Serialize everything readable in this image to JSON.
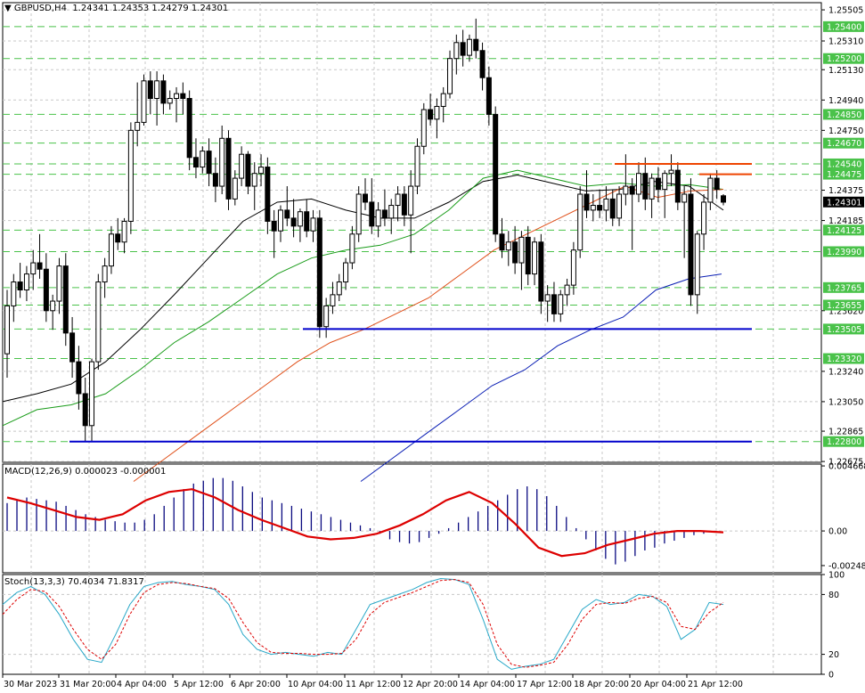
{
  "main": {
    "symbol": "GBPUSD,H4",
    "ohlc": "1.24341 1.24353 1.24279 1.24301",
    "current_price": "1.24301"
  },
  "macd": {
    "label": "MACD(12,26,9) 0.000023 -0.000001"
  },
  "stoch": {
    "label": "Stoch(13,3,3) 70.4034 71.8317"
  },
  "colors": {
    "candle": "#000000",
    "ma_black": "#000000",
    "ma_green": "#1a9c1a",
    "ma_orange": "#e0501a",
    "ma_blue": "#0a1eb4",
    "support_line": "#0000cc",
    "resistance_line": "#ee4400",
    "level_grid": "#4ac24a",
    "macd_signal": "#dd0000",
    "macd_hist": "#0a0a80",
    "stoch_main": "#28a8c8",
    "stoch_signal": "#dd0000"
  },
  "chart_data": [
    {
      "type": "candlestick",
      "title": "GBPUSD,H4",
      "ylim": [
        1.2267,
        1.2555
      ],
      "price_ticks": [
        "1.25505",
        "1.25310",
        "1.25130",
        "1.24940",
        "1.24750",
        "1.24375",
        "1.24185",
        "1.23620",
        "1.23240",
        "1.23050",
        "1.22865",
        "1.22675"
      ],
      "price_tick_values": [
        1.25505,
        1.2531,
        1.2513,
        1.2494,
        1.2475,
        1.24375,
        1.24185,
        1.2362,
        1.2324,
        1.2305,
        1.22865,
        1.22675
      ],
      "level_labels": [
        "1.25400",
        "1.25200",
        "1.24850",
        "1.24670",
        "1.24540",
        "1.24475",
        "1.24125",
        "1.23990",
        "1.23765",
        "1.23655",
        "1.23505",
        "1.23320",
        "1.22800"
      ],
      "level_values": [
        1.254,
        1.252,
        1.2485,
        1.2467,
        1.2454,
        1.24475,
        1.24125,
        1.2399,
        1.23765,
        1.23655,
        1.23505,
        1.2332,
        1.228
      ],
      "x_labels": [
        "30 Mar 2023",
        "31 Mar 20:00",
        "4 Apr 04:00",
        "5 Apr 12:00",
        "6 Apr 20:00",
        "10 Apr 04:00",
        "11 Apr 12:00",
        "12 Apr 20:00",
        "14 Apr 04:00",
        "17 Apr 12:00",
        "18 Apr 20:00",
        "20 Apr 04:00",
        "21 Apr 12:00"
      ],
      "candles": [
        [
          1.2335,
          1.2375,
          1.232,
          1.2365
        ],
        [
          1.2365,
          1.2385,
          1.2355,
          1.238
        ],
        [
          1.238,
          1.2392,
          1.237,
          1.2375
        ],
        [
          1.2375,
          1.239,
          1.2368,
          1.2385
        ],
        [
          1.2385,
          1.24,
          1.2375,
          1.2392
        ],
        [
          1.2392,
          1.241,
          1.2382,
          1.2388
        ],
        [
          1.2388,
          1.2398,
          1.2355,
          1.2362
        ],
        [
          1.2362,
          1.2372,
          1.235,
          1.2368
        ],
        [
          1.2368,
          1.2395,
          1.236,
          1.239
        ],
        [
          1.239,
          1.2398,
          1.234,
          1.2348
        ],
        [
          1.2348,
          1.2358,
          1.232,
          1.233
        ],
        [
          1.233,
          1.234,
          1.23,
          1.231
        ],
        [
          1.231,
          1.232,
          1.228,
          1.229
        ],
        [
          1.229,
          1.2332,
          1.228,
          1.233
        ],
        [
          1.233,
          1.2385,
          1.2325,
          1.238
        ],
        [
          1.238,
          1.2395,
          1.237,
          1.239
        ],
        [
          1.239,
          1.2415,
          1.2385,
          1.241
        ],
        [
          1.241,
          1.242,
          1.24,
          1.2405
        ],
        [
          1.2405,
          1.242,
          1.2398,
          1.2418
        ],
        [
          1.2418,
          1.248,
          1.241,
          1.2475
        ],
        [
          1.2475,
          1.2505,
          1.2465,
          1.248
        ],
        [
          1.248,
          1.251,
          1.2478,
          1.2506
        ],
        [
          1.2506,
          1.2512,
          1.2485,
          1.2495
        ],
        [
          1.2495,
          1.2512,
          1.2478,
          1.2506
        ],
        [
          1.2506,
          1.251,
          1.2485,
          1.2492
        ],
        [
          1.2492,
          1.25,
          1.2488,
          1.2495
        ],
        [
          1.2495,
          1.2502,
          1.248,
          1.2498
        ],
        [
          1.2498,
          1.2505,
          1.2485,
          1.2495
        ],
        [
          1.2495,
          1.25,
          1.245,
          1.2458
        ],
        [
          1.2458,
          1.247,
          1.2445,
          1.2452
        ],
        [
          1.2452,
          1.2465,
          1.2448,
          1.2462
        ],
        [
          1.2462,
          1.247,
          1.244,
          1.2448
        ],
        [
          1.2448,
          1.2458,
          1.243,
          1.244
        ],
        [
          1.244,
          1.2478,
          1.2435,
          1.247
        ],
        [
          1.247,
          1.2475,
          1.2425,
          1.2432
        ],
        [
          1.2432,
          1.245,
          1.2428,
          1.2445
        ],
        [
          1.2445,
          1.2465,
          1.244,
          1.246
        ],
        [
          1.246,
          1.2462,
          1.2435,
          1.244
        ],
        [
          1.244,
          1.2455,
          1.2425,
          1.2448
        ],
        [
          1.2448,
          1.246,
          1.244,
          1.2452
        ],
        [
          1.2452,
          1.2458,
          1.241,
          1.2418
        ],
        [
          1.2418,
          1.2425,
          1.2395,
          1.2412
        ],
        [
          1.2412,
          1.2428,
          1.2405,
          1.2425
        ],
        [
          1.2425,
          1.244,
          1.2415,
          1.242
        ],
        [
          1.242,
          1.2432,
          1.2408,
          1.2415
        ],
        [
          1.2415,
          1.2426,
          1.2405,
          1.2424
        ],
        [
          1.2424,
          1.2432,
          1.2408,
          1.2412
        ],
        [
          1.2412,
          1.2425,
          1.2405,
          1.242
        ],
        [
          1.242,
          1.2425,
          1.2345,
          1.2352
        ],
        [
          1.2352,
          1.237,
          1.2345,
          1.2365
        ],
        [
          1.2365,
          1.238,
          1.236,
          1.2372
        ],
        [
          1.2372,
          1.2385,
          1.2368,
          1.238
        ],
        [
          1.238,
          1.2395,
          1.2375,
          1.2392
        ],
        [
          1.2392,
          1.2415,
          1.2388,
          1.241
        ],
        [
          1.241,
          1.244,
          1.2405,
          1.2435
        ],
        [
          1.2435,
          1.2445,
          1.2425,
          1.243
        ],
        [
          1.243,
          1.2445,
          1.241,
          1.2415
        ],
        [
          1.2415,
          1.243,
          1.2408,
          1.2425
        ],
        [
          1.2425,
          1.2438,
          1.2415,
          1.242
        ],
        [
          1.242,
          1.2432,
          1.241,
          1.2428
        ],
        [
          1.2428,
          1.244,
          1.2418,
          1.2435
        ],
        [
          1.2435,
          1.244,
          1.2415,
          1.2422
        ],
        [
          1.2422,
          1.245,
          1.2398,
          1.244
        ],
        [
          1.244,
          1.247,
          1.2435,
          1.2465
        ],
        [
          1.2465,
          1.2492,
          1.246,
          1.2488
        ],
        [
          1.2488,
          1.2498,
          1.2478,
          1.2482
        ],
        [
          1.2482,
          1.2495,
          1.247,
          1.249
        ],
        [
          1.249,
          1.2502,
          1.248,
          1.2498
        ],
        [
          1.2498,
          1.2525,
          1.2495,
          1.252
        ],
        [
          1.252,
          1.2535,
          1.251,
          1.253
        ],
        [
          1.253,
          1.2538,
          1.2515,
          1.2522
        ],
        [
          1.2522,
          1.2535,
          1.2518,
          1.2532
        ],
        [
          1.2532,
          1.2545,
          1.252,
          1.2525
        ],
        [
          1.2525,
          1.253,
          1.25,
          1.2508
        ],
        [
          1.2508,
          1.2515,
          1.2478,
          1.2485
        ],
        [
          1.2485,
          1.249,
          1.2405,
          1.241
        ],
        [
          1.241,
          1.242,
          1.2395,
          1.24
        ],
        [
          1.24,
          1.2412,
          1.239,
          1.2405
        ],
        [
          1.2405,
          1.2415,
          1.2385,
          1.2392
        ],
        [
          1.2392,
          1.2412,
          1.2375,
          1.2408
        ],
        [
          1.2408,
          1.2415,
          1.2378,
          1.2385
        ],
        [
          1.2385,
          1.2408,
          1.2378,
          1.2405
        ],
        [
          1.2405,
          1.241,
          1.236,
          1.2368
        ],
        [
          1.2368,
          1.2378,
          1.2355,
          1.2372
        ],
        [
          1.2372,
          1.238,
          1.2355,
          1.236
        ],
        [
          1.236,
          1.2375,
          1.2355,
          1.2372
        ],
        [
          1.2372,
          1.2382,
          1.2365,
          1.2378
        ],
        [
          1.2378,
          1.2405,
          1.2372,
          1.24
        ],
        [
          1.24,
          1.244,
          1.2395,
          1.2435
        ],
        [
          1.2435,
          1.245,
          1.242,
          1.2425
        ],
        [
          1.2425,
          1.2435,
          1.2418,
          1.2428
        ],
        [
          1.2428,
          1.2438,
          1.242,
          1.2425
        ],
        [
          1.2425,
          1.244,
          1.2418,
          1.2432
        ],
        [
          1.2432,
          1.2438,
          1.2415,
          1.242
        ],
        [
          1.242,
          1.244,
          1.2415,
          1.2435
        ],
        [
          1.2435,
          1.246,
          1.2428,
          1.244
        ],
        [
          1.244,
          1.2445,
          1.24,
          1.2435
        ],
        [
          1.2435,
          1.2455,
          1.243,
          1.2448
        ],
        [
          1.2448,
          1.2458,
          1.2425,
          1.2432
        ],
        [
          1.2432,
          1.2448,
          1.242,
          1.2445
        ],
        [
          1.2445,
          1.2452,
          1.243,
          1.2438
        ],
        [
          1.2438,
          1.245,
          1.242,
          1.2448
        ],
        [
          1.2448,
          1.246,
          1.244,
          1.245
        ],
        [
          1.245,
          1.2455,
          1.2425,
          1.243
        ],
        [
          1.243,
          1.244,
          1.2395,
          1.2435
        ],
        [
          1.2435,
          1.2445,
          1.2365,
          1.2372
        ],
        [
          1.2372,
          1.2412,
          1.236,
          1.241
        ],
        [
          1.241,
          1.2435,
          1.24,
          1.243
        ],
        [
          1.243,
          1.2448,
          1.2425,
          1.2445
        ],
        [
          1.2445,
          1.245,
          1.2432,
          1.2438
        ],
        [
          1.2434,
          1.2435,
          1.2428,
          1.243
        ]
      ],
      "moving_averages": [
        {
          "color": "black",
          "values": [
            1.2305,
            1.231,
            1.2316,
            1.233,
            1.235,
            1.2372,
            1.2395,
            1.2418,
            1.243,
            1.2432,
            1.2425,
            1.242,
            1.242,
            1.243,
            1.2443,
            1.2447,
            1.2442,
            1.2437,
            1.2438,
            1.2443,
            1.244,
            1.2425
          ]
        },
        {
          "color": "green",
          "values": [
            1.229,
            1.23,
            1.2303,
            1.231,
            1.2325,
            1.2342,
            1.2355,
            1.237,
            1.2385,
            1.2395,
            1.24,
            1.2403,
            1.241,
            1.2425,
            1.2445,
            1.245,
            1.2445,
            1.244,
            1.2442,
            1.244,
            1.2441,
            1.2438
          ]
        },
        {
          "color": "orange",
          "values": [
            1.2255,
            1.227,
            1.2285,
            1.23,
            1.2315,
            1.233,
            1.2342,
            1.235,
            1.236,
            1.237,
            1.2385,
            1.24,
            1.241,
            1.242,
            1.243,
            1.244,
            1.2433,
            1.2437,
            1.2438
          ]
        },
        {
          "color": "blue",
          "values": [
            1.2255,
            1.227,
            1.2285,
            1.23,
            1.2315,
            1.2325,
            1.234,
            1.235,
            1.2358,
            1.2375,
            1.2382,
            1.2385
          ]
        }
      ],
      "support_levels": [
        1.23505,
        1.228
      ],
      "resistance_levels": [
        1.2454,
        1.24475
      ]
    },
    {
      "type": "bar",
      "title": "MACD(12,26,9) 0.000023 -0.000001",
      "ylim": [
        -0.003,
        0.0048
      ],
      "y_ticks": [
        "0.004668",
        "0.00",
        "-0.002485"
      ],
      "y_tick_values": [
        0.004668,
        0.0,
        -0.002485
      ],
      "histogram_values": [
        0.002,
        0.0022,
        0.0024,
        0.0023,
        0.0022,
        0.0021,
        0.0018,
        0.0015,
        0.0012,
        0.001,
        0.0008,
        0.0007,
        0.0006,
        0.0006,
        0.0008,
        0.0012,
        0.0018,
        0.0024,
        0.003,
        0.0034,
        0.0036,
        0.0038,
        0.0038,
        0.0036,
        0.0032,
        0.0028,
        0.0024,
        0.0022,
        0.002,
        0.0018,
        0.0016,
        0.0014,
        0.0012,
        0.001,
        0.0008,
        0.0006,
        0.0004,
        0.0002,
        -0.0002,
        -0.0006,
        -0.0008,
        -0.0009,
        -0.0008,
        -0.0005,
        -0.0002,
        0.0002,
        0.0006,
        0.001,
        0.0014,
        0.0018,
        0.0022,
        0.0026,
        0.003,
        0.0032,
        0.003,
        0.0025,
        0.0018,
        0.001,
        0.0002,
        -0.0006,
        -0.0014,
        -0.002,
        -0.0024,
        -0.0022,
        -0.0018,
        -0.0014,
        -0.0012,
        -0.0009,
        -0.0007,
        -0.0005,
        -0.0003,
        -0.0002,
        -0.0001,
        0.0
      ],
      "signal_values": [
        0.0024,
        0.002,
        0.0015,
        0.001,
        0.0008,
        0.0012,
        0.0022,
        0.0028,
        0.003,
        0.0024,
        0.0015,
        0.0008,
        0.0002,
        -0.0004,
        -0.0006,
        -0.0005,
        -0.0002,
        0.0004,
        0.0012,
        0.0022,
        0.0028,
        0.002,
        0.0005,
        -0.0012,
        -0.0018,
        -0.0016,
        -0.001,
        -0.0006,
        -0.0002,
        0.0,
        0.0,
        -0.0001
      ]
    },
    {
      "type": "line",
      "title": "Stoch(13,3,3) 70.4034 71.8317",
      "ylim": [
        0,
        100
      ],
      "y_ticks": [
        "100",
        "80",
        "20",
        "0"
      ],
      "y_tick_values": [
        100,
        80,
        20,
        0
      ],
      "series": [
        {
          "values": [
            70,
            82,
            88,
            80,
            60,
            35,
            15,
            12,
            40,
            70,
            88,
            92,
            93,
            90,
            88,
            85,
            70,
            40,
            25,
            20,
            22,
            20,
            18,
            22,
            20,
            45,
            70,
            75,
            80,
            85,
            92,
            96,
            95,
            90,
            55,
            15,
            5,
            8,
            10,
            15,
            40,
            65,
            75,
            70,
            72,
            80,
            78,
            68,
            35,
            45,
            72,
            70
          ]
        },
        {
          "values": [
            60,
            75,
            85,
            83,
            68,
            45,
            25,
            15,
            30,
            60,
            82,
            90,
            92,
            91,
            88,
            86,
            76,
            52,
            32,
            22,
            21,
            21,
            20,
            20,
            21,
            35,
            60,
            72,
            77,
            82,
            88,
            94,
            95,
            92,
            70,
            30,
            10,
            7,
            9,
            12,
            30,
            55,
            70,
            72,
            71,
            76,
            78,
            72,
            48,
            45,
            62,
            72
          ]
        }
      ]
    }
  ]
}
